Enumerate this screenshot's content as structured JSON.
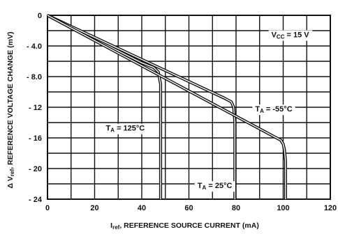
{
  "chart_data": {
    "type": "line",
    "xlabel": "I_ref, REFERENCE SOURCE CURRENT (mA)",
    "xlabel_main": "I",
    "xlabel_sub": "ref",
    "xlabel_rest": ", REFERENCE SOURCE CURRENT (mA)",
    "ylabel": "ΔV_ref, REFERENCE VOLTAGE CHANGE (mV)",
    "ylabel_main": "Δ V",
    "ylabel_sub": "ref",
    "ylabel_rest": ", REFERENCE VOLTAGE CHANGE (mV)",
    "xlim": [
      0,
      120
    ],
    "ylim": [
      -24,
      0
    ],
    "x_ticks": [
      0,
      20,
      40,
      60,
      80,
      100,
      120
    ],
    "x_tick_labels": [
      "0",
      "20",
      "40",
      "60",
      "80",
      "100",
      "120"
    ],
    "y_ticks": [
      0,
      -4,
      -8,
      -12,
      -16,
      -20,
      -24
    ],
    "y_tick_labels": [
      "0",
      "- 4.0",
      "- 8.0",
      "- 12",
      "- 16",
      "- 20",
      "- 24"
    ],
    "grid": true,
    "annotations": [
      {
        "id": "vcc",
        "text": "V_CC = 15 V",
        "main": "V",
        "sub": "CC",
        "rest": " = 15 V",
        "x": 103,
        "y": -2.5
      },
      {
        "id": "ta-125",
        "text": "T_A = 125°C",
        "main": "T",
        "sub": "A",
        "rest": " = 125°C",
        "x": 33,
        "y": -14.7
      },
      {
        "id": "ta-m55",
        "text": "T_A = -55°C",
        "main": "T",
        "sub": "A",
        "rest": " = -55°C",
        "x": 96,
        "y": -12.2
      },
      {
        "id": "ta-25",
        "text": "T_A = 25°C",
        "main": "T",
        "sub": "A",
        "rest": " = 25°C",
        "x": 71,
        "y": -22.2
      }
    ],
    "series": [
      {
        "name": "T_A = 125°C",
        "x": [
          0,
          40,
          45,
          47,
          48,
          48
        ],
        "y": [
          0,
          -6.2,
          -6.8,
          -7.4,
          -9,
          -24
        ]
      },
      {
        "name": "T_A = 25°C",
        "x": [
          0,
          75,
          78,
          79,
          79.5,
          79.5
        ],
        "y": [
          0,
          -10.8,
          -11.3,
          -12,
          -14,
          -24
        ]
      },
      {
        "name": "T_A = -55°C",
        "x": [
          0,
          99,
          100,
          100.5,
          101,
          101
        ],
        "y": [
          0,
          -16.3,
          -16.8,
          -17.5,
          -19,
          -24
        ]
      }
    ]
  }
}
